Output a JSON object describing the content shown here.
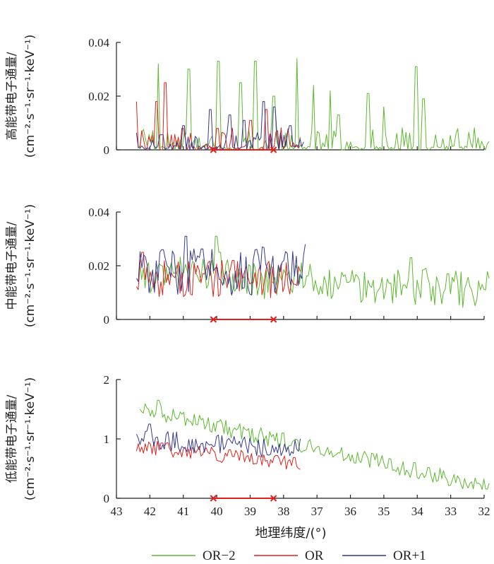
{
  "chart_data": {
    "type": "line",
    "xlabel": "地理纬度/(°)",
    "x_ticks": [
      "43",
      "42",
      "41",
      "40",
      "39",
      "38",
      "37",
      "36",
      "35",
      "34",
      "33",
      "32"
    ],
    "xlim": [
      43,
      32
    ],
    "legend": [
      {
        "name": "OR−2",
        "color": "#5cb82e"
      },
      {
        "name": "OR",
        "color": "#e0211b"
      },
      {
        "name": "OR+1",
        "color": "#35378f"
      }
    ],
    "markers_x": [
      40.1,
      38.3
    ],
    "panels": [
      {
        "id": "high",
        "ylabel_line1": "高能带电子通量/",
        "ylabel_line2": "(cm⁻²·s⁻¹·sr⁻¹·keV⁻¹)",
        "ylim": [
          0,
          0.04
        ],
        "y_ticks": [
          "0",
          "0.02",
          "0.04"
        ],
        "y_tick_values": [
          0,
          0.02,
          0.04
        ],
        "series": [
          {
            "name": "OR−2",
            "x_start": 42.3,
            "x_end": 31.85,
            "points": 190,
            "mean": 0.003,
            "noise": 0.003,
            "floor": 0,
            "trend": 0,
            "spikes": [
              [
                41.75,
                0.032
              ],
              [
                40.85,
                0.03
              ],
              [
                39.95,
                0.033
              ],
              [
                39.3,
                0.025
              ],
              [
                38.85,
                0.033
              ],
              [
                38.3,
                0.02
              ],
              [
                37.6,
                0.034
              ],
              [
                37.1,
                0.024
              ],
              [
                36.6,
                0.022
              ],
              [
                36.35,
                0.013
              ],
              [
                35.45,
                0.021
              ],
              [
                35.0,
                0.016
              ],
              [
                34.05,
                0.031
              ],
              [
                33.8,
                0.019
              ]
            ]
          },
          {
            "name": "OR",
            "x_start": 42.4,
            "x_end": 37.5,
            "points": 95,
            "mean": 0.003,
            "noise": 0.003,
            "floor": 0,
            "trend": 0,
            "spikes": [
              [
                42.4,
                0.018
              ],
              [
                41.8,
                0.018
              ],
              [
                41.55,
                0.025
              ],
              [
                41.0,
                0.008
              ],
              [
                40.0,
                0.008
              ],
              [
                39.0,
                0.011
              ],
              [
                38.5,
                0.015
              ]
            ]
          },
          {
            "name": "OR+1",
            "x_start": 42.4,
            "x_end": 37.4,
            "points": 95,
            "mean": 0.003,
            "noise": 0.002,
            "floor": 0,
            "trend": 0,
            "spikes": [
              [
                41.0,
                0.009
              ],
              [
                40.2,
                0.015
              ],
              [
                39.6,
                0.013
              ],
              [
                39.2,
                0.011
              ],
              [
                38.6,
                0.018
              ],
              [
                38.3,
                0.016
              ],
              [
                37.8,
                0.009
              ]
            ]
          }
        ]
      },
      {
        "id": "mid",
        "ylabel_line1": "中能带电子通量/",
        "ylabel_line2": "(cm⁻²·s⁻¹·sr⁻¹·keV⁻¹)",
        "ylim": [
          0,
          0.04
        ],
        "y_ticks": [
          "0",
          "0.02",
          "0.04"
        ],
        "y_tick_values": [
          0,
          0.02,
          0.04
        ],
        "series": [
          {
            "name": "OR−2",
            "x_start": 42.3,
            "x_end": 31.85,
            "points": 200,
            "mean": 0.017,
            "noise": 0.004,
            "floor": 0.004,
            "trend": -0.006,
            "spikes": [
              [
                40.0,
                0.031
              ],
              [
                39.9,
                0.025
              ],
              [
                34.2,
                0.023
              ],
              [
                33.1,
                0.017
              ]
            ]
          },
          {
            "name": "OR",
            "x_start": 42.4,
            "x_end": 37.5,
            "points": 95,
            "mean": 0.015,
            "noise": 0.004,
            "floor": 0.006,
            "trend": 0,
            "spikes": [
              [
                42.2,
                0.025
              ],
              [
                39.5,
                0.022
              ]
            ]
          },
          {
            "name": "OR+1",
            "x_start": 42.4,
            "x_end": 37.35,
            "points": 95,
            "mean": 0.018,
            "noise": 0.005,
            "floor": 0.007,
            "trend": 0,
            "spikes": [
              [
                40.9,
                0.031
              ],
              [
                37.35,
                0.028
              ],
              [
                41.6,
                0.026
              ]
            ]
          }
        ]
      },
      {
        "id": "low",
        "ylabel_line1": "低能带电子通量/",
        "ylabel_line2": "(cm⁻²·s⁻¹·sr⁻¹·keV⁻¹)",
        "ylim": [
          0,
          2
        ],
        "y_ticks": [
          "0",
          "1",
          "2"
        ],
        "y_tick_values": [
          0,
          1,
          2
        ],
        "series": [
          {
            "name": "OR−2",
            "x_start": 42.3,
            "x_end": 31.85,
            "points": 200,
            "mean": 1.5,
            "noise": 0.08,
            "floor": 0.15,
            "trend": -1.3,
            "spikes": [
              [
                42.3,
                1.5
              ],
              [
                41.75,
                1.65
              ]
            ]
          },
          {
            "name": "OR",
            "x_start": 42.4,
            "x_end": 37.5,
            "points": 95,
            "mean": 0.88,
            "noise": 0.07,
            "floor": 0.4,
            "trend": -0.3,
            "spikes": []
          },
          {
            "name": "OR+1",
            "x_start": 42.4,
            "x_end": 37.5,
            "points": 95,
            "mean": 0.98,
            "noise": 0.1,
            "floor": 0.55,
            "trend": -0.15,
            "spikes": [
              [
                42.0,
                1.25
              ]
            ]
          }
        ]
      }
    ]
  }
}
